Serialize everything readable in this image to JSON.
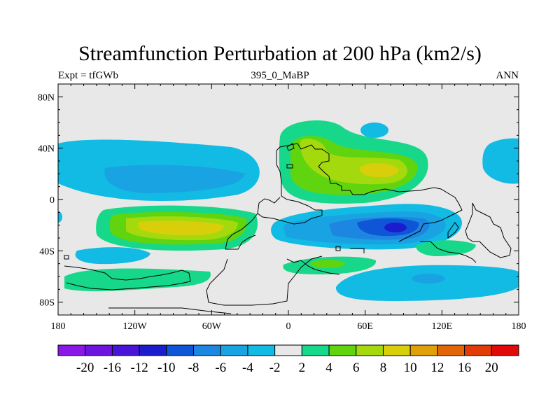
{
  "chart_data": {
    "type": "heatmap",
    "title": "Streamfunction Perturbation at 200 hPa (km2/s)",
    "left_label": "Expt = tfGWb",
    "center_label": "395_0_MaBP",
    "right_label": "ANN",
    "x_ticks": [
      "180",
      "120W",
      "60W",
      "0",
      "60E",
      "120E",
      "180"
    ],
    "y_ticks": [
      "80N",
      "40N",
      "0",
      "40S",
      "80S"
    ],
    "xlim": [
      -180,
      180
    ],
    "ylim": [
      -90,
      90
    ],
    "colorbar_labels": [
      "-20",
      "-16",
      "-12",
      "-10",
      "-8",
      "-6",
      "-4",
      "-2",
      "2",
      "4",
      "6",
      "8",
      "10",
      "12",
      "16",
      "20"
    ],
    "colorbar_colors": [
      "#8a18e6",
      "#6d14e0",
      "#4a14d8",
      "#1c1ccf",
      "#0f55d7",
      "#1c86e0",
      "#1aa3e3",
      "#11bbe3",
      "#e8e8e8",
      "#17d88a",
      "#5fd40f",
      "#a4da0d",
      "#d8cf0a",
      "#e1a008",
      "#e26607",
      "#e23b06",
      "#e00a0a"
    ],
    "anomalies": [
      {
        "lon": -120,
        "lat": 25,
        "value": -4
      },
      {
        "lon": -100,
        "lat": -22,
        "value": 8
      },
      {
        "lon": -135,
        "lat": -42,
        "value": -3
      },
      {
        "lon": -120,
        "lat": -60,
        "value": 4
      },
      {
        "lon": 30,
        "lat": 30,
        "value": 6
      },
      {
        "lon": 80,
        "lat": 23,
        "value": 9
      },
      {
        "lon": 85,
        "lat": -22,
        "value": -9
      },
      {
        "lon": 130,
        "lat": -35,
        "value": 3
      },
      {
        "lon": 40,
        "lat": -50,
        "value": 3
      },
      {
        "lon": 110,
        "lat": -65,
        "value": -3
      },
      {
        "lon": -175,
        "lat": 25,
        "value": -3
      },
      {
        "lon": 175,
        "lat": 35,
        "value": -3
      }
    ]
  }
}
